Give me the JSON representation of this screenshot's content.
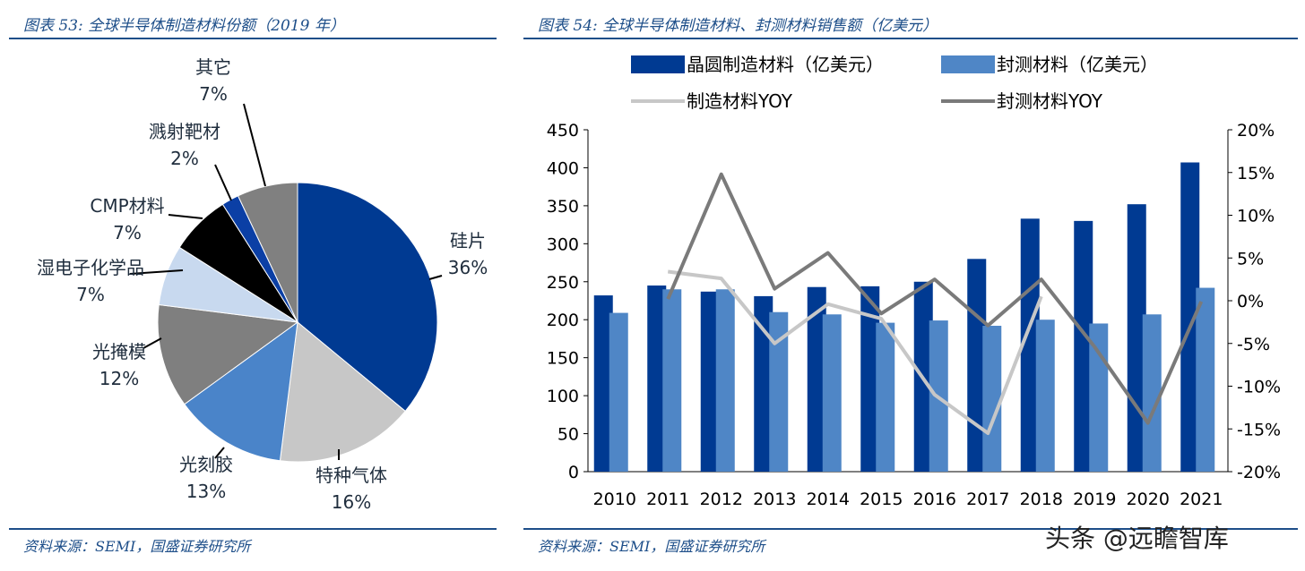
{
  "left": {
    "title": "图表 53:  全球半导体制造材料份额（2019 年）",
    "source": "资料来源：SEMI，国盛证券研究所"
  },
  "right": {
    "title": "图表 54:  全球半导体制造材料、封测材料销售额（亿美元）",
    "source": "资料来源：SEMI，国盛证券研究所"
  },
  "watermark": "头条 @远瞻智库",
  "chart_data": [
    {
      "type": "pie",
      "slices": [
        {
          "name": "硅片",
          "value": 36,
          "label": "36%",
          "color": "#003a92"
        },
        {
          "name": "特种气体",
          "value": 16,
          "label": "16%",
          "color": "#c7c7c7"
        },
        {
          "name": "光刻胶",
          "value": 13,
          "label": "13%",
          "color": "#4a84c9"
        },
        {
          "name": "光掩模",
          "value": 12,
          "label": "12%",
          "color": "#7f7f7f"
        },
        {
          "name": "湿电子化学品",
          "value": 7,
          "label": "7%",
          "color": "#c8d9ef"
        },
        {
          "name": "CMP材料",
          "value": 7,
          "label": "7%",
          "color": "#000000"
        },
        {
          "name": "溅射靶材",
          "value": 2,
          "label": "2%",
          "color": "#0b3fa5"
        },
        {
          "name": "其它",
          "value": 7,
          "label": "7%",
          "color": "#808080"
        }
      ]
    },
    {
      "type": "bar",
      "categories": [
        "2010",
        "2011",
        "2012",
        "2013",
        "2014",
        "2015",
        "2016",
        "2017",
        "2018",
        "2019",
        "2020",
        "2021"
      ],
      "series": [
        {
          "name": "晶圆制造材料（亿美元）",
          "kind": "bar",
          "axis": "left",
          "color": "#003a92",
          "values": [
            232,
            245,
            237,
            231,
            243,
            244,
            250,
            280,
            333,
            330,
            352,
            407
          ]
        },
        {
          "name": "封测材料（亿美元）",
          "kind": "bar",
          "axis": "left",
          "color": "#4f86c6",
          "values": [
            209,
            240,
            240,
            210,
            207,
            196,
            199,
            192,
            200,
            195,
            207,
            242
          ]
        },
        {
          "name": "制造材料YOY",
          "kind": "line",
          "axis": "right",
          "color": "#c7c7c7",
          "values": [
            null,
            3.4,
            2.6,
            -5.0,
            -0.4,
            -2.1,
            -11.0,
            -15.5,
            0.5,
            null,
            -13.5,
            null
          ]
        },
        {
          "name": "封测材料YOY",
          "kind": "line",
          "axis": "right",
          "color": "#7a7a7a",
          "values": [
            null,
            0.2,
            14.8,
            1.4,
            5.6,
            -1.5,
            2.5,
            -2.9,
            2.5,
            -5.4,
            -14.3,
            -0.1
          ]
        }
      ],
      "y_left": {
        "min": 0,
        "max": 450,
        "ticks": [
          "0",
          "50",
          "100",
          "150",
          "200",
          "250",
          "300",
          "350",
          "400",
          "450"
        ]
      },
      "y_right": {
        "min": -20,
        "max": 20,
        "ticks": [
          "-20%",
          "-15%",
          "-10%",
          "-5%",
          "0%",
          "5%",
          "10%",
          "15%",
          "20%"
        ]
      },
      "legend_position": "top"
    }
  ]
}
